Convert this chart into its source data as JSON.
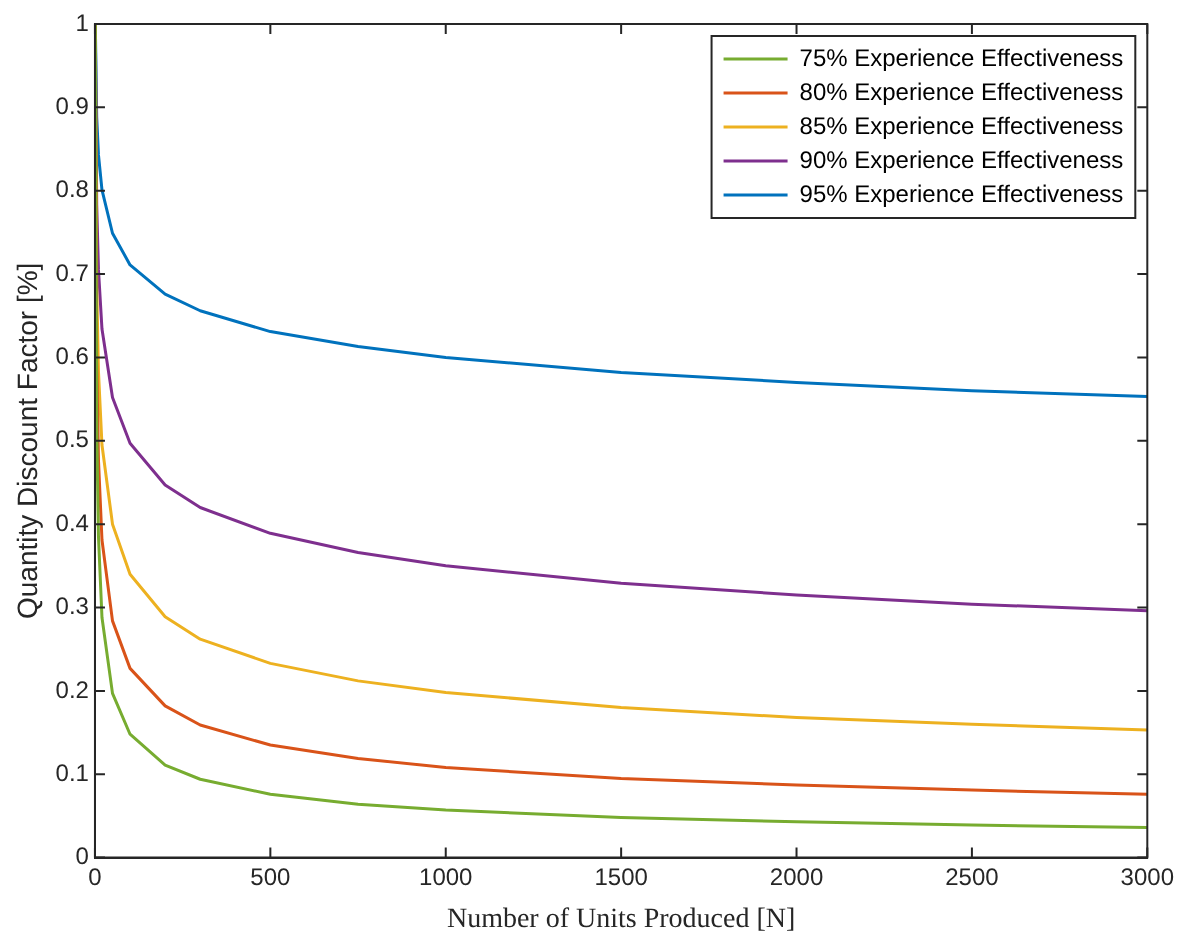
{
  "chart_data": {
    "type": "line",
    "xlabel": "Number of Units Produced [N]",
    "ylabel": "Quantity Discount Factor [%]",
    "x": [
      1,
      5,
      10,
      20,
      50,
      100,
      200,
      300,
      500,
      750,
      1000,
      1500,
      2000,
      2500,
      3000
    ],
    "xlim": [
      0,
      3000
    ],
    "xticks": [
      0,
      500,
      1000,
      1500,
      2000,
      2500,
      3000
    ],
    "ylim": [
      0,
      1
    ],
    "yticks": [
      0,
      0.1,
      0.2,
      0.3,
      0.4,
      0.5,
      0.6,
      0.7,
      0.8,
      0.9,
      1
    ],
    "grid": false,
    "legend": "top right",
    "marker": "none",
    "line_style": "solid",
    "series": [
      {
        "name": "75% Experience Effectiveness",
        "color": "#77ac30",
        "values": [
          1,
          0.513,
          0.385,
          0.288,
          0.197,
          0.148,
          0.111,
          0.094,
          0.076,
          0.064,
          0.057,
          0.048,
          0.043,
          0.039,
          0.036
        ]
      },
      {
        "name": "80% Experience Effectiveness",
        "color": "#d95319",
        "values": [
          1,
          0.596,
          0.477,
          0.381,
          0.284,
          0.227,
          0.182,
          0.159,
          0.135,
          0.119,
          0.108,
          0.095,
          0.087,
          0.081,
          0.076
        ]
      },
      {
        "name": "85% Experience Effectiveness",
        "color": "#edb120",
        "values": [
          1,
          0.686,
          0.583,
          0.495,
          0.4,
          0.34,
          0.289,
          0.262,
          0.233,
          0.212,
          0.198,
          0.18,
          0.168,
          0.16,
          0.153
        ]
      },
      {
        "name": "90% Experience Effectiveness",
        "color": "#7e2f8e",
        "values": [
          1,
          0.783,
          0.705,
          0.634,
          0.552,
          0.497,
          0.447,
          0.42,
          0.389,
          0.366,
          0.35,
          0.329,
          0.315,
          0.304,
          0.296
        ]
      },
      {
        "name": "95% Experience Effectiveness",
        "color": "#0072bd",
        "values": [
          1,
          0.888,
          0.843,
          0.801,
          0.749,
          0.711,
          0.676,
          0.656,
          0.631,
          0.613,
          0.6,
          0.582,
          0.57,
          0.56,
          0.553
        ]
      }
    ]
  }
}
